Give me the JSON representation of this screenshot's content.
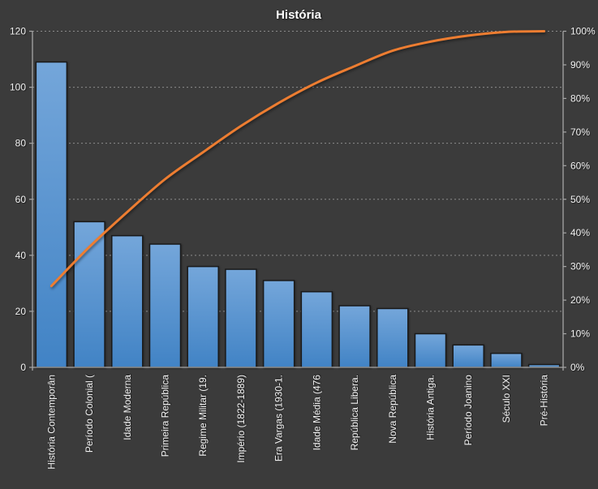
{
  "chart_data": {
    "type": "bar",
    "title": "História",
    "categories": [
      "História Contemporân",
      "Período Colonial (",
      "Idade Moderna",
      "Primeira República",
      "Regime Militar (19.",
      "Império (1822-1889)",
      "Era Vargas (1930-1.",
      "Idade Média (476",
      "República Libera.",
      "Nova República",
      "História Antiga.",
      "Período Joanino",
      "Século XXI",
      "Pré-História"
    ],
    "series": [
      {
        "type": "bar",
        "axis": "left",
        "values": [
          109,
          52,
          47,
          44,
          36,
          35,
          31,
          27,
          22,
          21,
          12,
          8,
          5,
          1
        ]
      },
      {
        "type": "line",
        "axis": "right",
        "values": [
          24.2,
          35.8,
          46.2,
          56.0,
          64.0,
          71.8,
          78.7,
          84.7,
          89.6,
          94.2,
          96.9,
          98.7,
          99.8,
          100.0
        ]
      }
    ],
    "left_axis": {
      "min": 0,
      "max": 120,
      "tick_step": 20,
      "ticks": [
        "0",
        "20",
        "40",
        "60",
        "80",
        "100",
        "120"
      ]
    },
    "right_axis": {
      "min_label": "0%",
      "max_label": "100%",
      "ticks": [
        "0%",
        "10%",
        "20%",
        "30%",
        "40%",
        "50%",
        "60%",
        "70%",
        "80%",
        "90%",
        "100%"
      ]
    },
    "grid": true,
    "legend": false,
    "xlabel": "",
    "ylabel": ""
  },
  "colors": {
    "background": "#3B3B3B",
    "bar_fill_top": "#74A6DA",
    "bar_fill_bottom": "#4183C5",
    "bar_border": "#1A1A1A",
    "line": "#ED7D31",
    "gridline": "#9A9A9A",
    "axis": "#A6A6A6",
    "text": "#F2F2F2",
    "title": "#FFFFFF"
  }
}
